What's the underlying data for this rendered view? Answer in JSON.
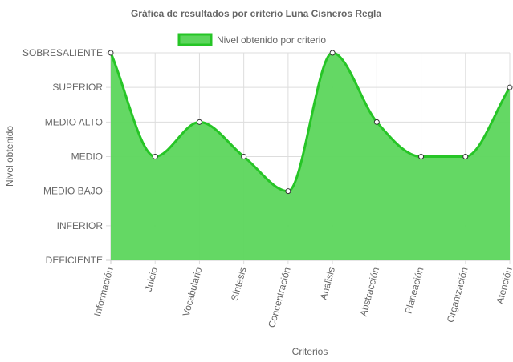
{
  "chart_data": {
    "type": "area",
    "title": "Gráfica de resultados por criterio Luna Cisneros Regla",
    "xlabel": "Criterios",
    "ylabel": "Nivel obtenido",
    "categories": [
      "Información",
      "Juicio",
      "Vocabulario",
      "Síntesis",
      "Concentración",
      "Análisis",
      "Abstracción",
      "Planeación",
      "Organización",
      "Atención"
    ],
    "y_levels": [
      "DEFICIENTE",
      "INFERIOR",
      "MEDIO BAJO",
      "MEDIO",
      "MEDIO ALTO",
      "SUPERIOR",
      "SOBRESALIENTE"
    ],
    "ylim": [
      0,
      6
    ],
    "series": [
      {
        "name": "Nivel obtenido por criterio",
        "values": [
          6,
          3,
          4,
          3,
          2,
          6,
          4,
          3,
          3,
          5
        ],
        "labels": [
          "SOBRESALIENTE",
          "MEDIO",
          "MEDIO ALTO",
          "MEDIO",
          "MEDIO BAJO",
          "SOBRESALIENTE",
          "MEDIO ALTO",
          "MEDIO",
          "MEDIO",
          "SUPERIOR"
        ]
      }
    ],
    "grid": true,
    "legend_position": "top",
    "colors": {
      "fill": "#5cd65c",
      "stroke": "#26c526",
      "grid": "#dddddd",
      "axis": "#cccccc",
      "text": "#666666",
      "point_fill": "#ffffff",
      "point_stroke": "#333333"
    }
  }
}
